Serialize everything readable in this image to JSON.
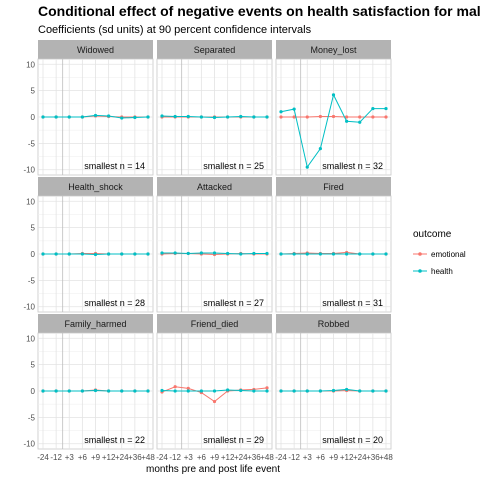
{
  "chart_data": {
    "type": "line",
    "title": "Conditional effect of negative events on health satisfaction for males",
    "subtitle": "Coefficients (sd units) at 90 percent confidence intervals",
    "xlabel": "months pre and post life event",
    "ylabel": "",
    "x": [
      -24,
      -12,
      3,
      6,
      9,
      12,
      24,
      36,
      48
    ],
    "x_tick_labels": [
      "-24",
      "-12",
      "+3",
      "+6",
      "+9",
      "+12",
      "+24",
      "+36",
      "+48"
    ],
    "reference_x": 3,
    "ylim": [
      -11,
      11
    ],
    "y_ticks": [
      -10,
      -5,
      0,
      5,
      10
    ],
    "grid": true,
    "legend": {
      "title": "outcome",
      "placement": "right",
      "entries": [
        {
          "label": "emotional",
          "color": "#F8766D"
        },
        {
          "label": "health",
          "color": "#00BFC4"
        }
      ]
    },
    "panels": [
      {
        "name": "Widowed",
        "n_label": "smallest n = 14",
        "series": [
          {
            "name": "emotional",
            "values": [
              0,
              0,
              0,
              0,
              0.2,
              0.1,
              0,
              0,
              0
            ]
          },
          {
            "name": "health",
            "values": [
              0,
              0,
              0,
              0,
              0.3,
              0.2,
              -0.2,
              -0.1,
              0
            ]
          }
        ]
      },
      {
        "name": "Separated",
        "n_label": "smallest n = 25",
        "series": [
          {
            "name": "emotional",
            "values": [
              0,
              0,
              0,
              0,
              0,
              0,
              0,
              0,
              0
            ]
          },
          {
            "name": "health",
            "values": [
              0.2,
              0.1,
              0.1,
              0,
              -0.1,
              0,
              0.1,
              0,
              0
            ]
          }
        ]
      },
      {
        "name": "Money_lost",
        "n_label": "smallest n = 32",
        "series": [
          {
            "name": "emotional",
            "values": [
              0,
              0,
              0,
              0.1,
              0.1,
              0,
              0,
              0,
              0
            ]
          },
          {
            "name": "health",
            "values": [
              1,
              1.5,
              -9.5,
              -6,
              4.2,
              -0.8,
              -1,
              1.6,
              1.6
            ]
          }
        ]
      },
      {
        "name": "Health_shock",
        "n_label": "smallest n = 28",
        "series": [
          {
            "name": "emotional",
            "values": [
              0,
              0,
              0,
              0.1,
              0.1,
              0,
              0,
              0,
              0
            ]
          },
          {
            "name": "health",
            "values": [
              0,
              0,
              0,
              0,
              -0.1,
              0,
              0,
              0,
              0
            ]
          }
        ]
      },
      {
        "name": "Attacked",
        "n_label": "smallest n = 27",
        "series": [
          {
            "name": "emotional",
            "values": [
              0,
              0.1,
              0.1,
              0,
              -0.1,
              0,
              0.1,
              0,
              0
            ]
          },
          {
            "name": "health",
            "values": [
              0.2,
              0.2,
              0.1,
              0.2,
              0.2,
              0.1,
              0,
              0.1,
              0.1
            ]
          }
        ]
      },
      {
        "name": "Fired",
        "n_label": "smallest n = 31",
        "series": [
          {
            "name": "emotional",
            "values": [
              0,
              0.1,
              0.2,
              0.1,
              0.1,
              0.3,
              0,
              0,
              0
            ]
          },
          {
            "name": "health",
            "values": [
              0,
              0,
              0,
              0,
              0,
              0,
              0,
              0,
              0
            ]
          }
        ]
      },
      {
        "name": "Family_harmed",
        "n_label": "smallest n = 22",
        "series": [
          {
            "name": "emotional",
            "values": [
              0,
              0,
              0,
              0,
              0.2,
              0,
              0,
              0,
              0
            ]
          },
          {
            "name": "health",
            "values": [
              0,
              0,
              0,
              0,
              0.1,
              0,
              0,
              0,
              0
            ]
          }
        ]
      },
      {
        "name": "Friend_died",
        "n_label": "smallest n = 29",
        "series": [
          {
            "name": "emotional",
            "values": [
              -0.2,
              0.8,
              0.5,
              -0.3,
              -2,
              0,
              0.2,
              0.3,
              0.6
            ]
          },
          {
            "name": "health",
            "values": [
              0.1,
              0,
              0,
              0,
              0,
              0.2,
              0.1,
              0,
              0
            ]
          }
        ]
      },
      {
        "name": "Robbed",
        "n_label": "smallest n = 20",
        "series": [
          {
            "name": "emotional",
            "values": [
              0,
              0,
              0,
              0,
              0,
              0.1,
              0,
              0,
              0
            ]
          },
          {
            "name": "health",
            "values": [
              0,
              0,
              0,
              0,
              0.1,
              0.3,
              0,
              0,
              0
            ]
          }
        ]
      }
    ]
  }
}
